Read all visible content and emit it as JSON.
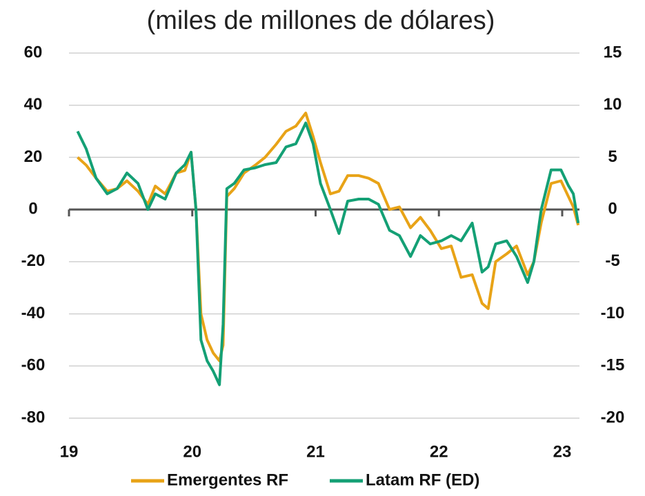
{
  "chart_data": {
    "type": "line",
    "title": "(miles de millones de dólares)",
    "x": [
      19.07,
      19.14,
      19.22,
      19.31,
      19.39,
      19.47,
      19.56,
      19.64,
      19.7,
      19.78,
      19.87,
      19.94,
      19.99,
      20.03,
      20.07,
      20.12,
      20.17,
      20.22,
      20.25,
      20.28,
      20.34,
      20.42,
      20.51,
      20.59,
      20.68,
      20.76,
      20.84,
      20.92,
      20.98,
      21.04,
      21.12,
      21.19,
      21.26,
      21.35,
      21.43,
      21.51,
      21.6,
      21.68,
      21.77,
      21.85,
      21.93,
      22.02,
      22.1,
      22.18,
      22.27,
      22.35,
      22.4,
      22.46,
      22.55,
      22.63,
      22.72,
      22.77,
      22.83,
      22.91,
      22.99,
      23.05,
      23.09,
      23.13
    ],
    "series": [
      {
        "name": "Emergentes RF",
        "color": "#E8A317",
        "values": [
          20,
          17,
          12,
          7,
          8,
          11,
          7,
          2,
          9,
          6,
          14,
          15,
          22,
          0,
          -40,
          -50,
          -55,
          -58,
          -52,
          5,
          8,
          14,
          17,
          20,
          25,
          30,
          32,
          37,
          28,
          18,
          6,
          7,
          13,
          13,
          12,
          10,
          0,
          1,
          -7,
          -3,
          -8,
          -15,
          -14,
          -26,
          -25,
          -36,
          -38,
          -20,
          -17,
          -14,
          -25,
          -20,
          -5,
          10,
          11,
          5,
          1,
          -6
        ]
      },
      {
        "name": "Latam RF (ED)",
        "color": "#14A075",
        "axis": "y2",
        "values": [
          7.5,
          5.8,
          3,
          1.5,
          2,
          3.5,
          2.5,
          0,
          1.5,
          1,
          3.5,
          4.3,
          5.5,
          0,
          -12.5,
          -14.5,
          -15.5,
          -16.8,
          -11,
          2,
          2.5,
          3.8,
          4,
          4.3,
          4.5,
          6,
          6.3,
          8.3,
          6.3,
          2.5,
          0,
          -2.3,
          0.8,
          1,
          1,
          0.5,
          -2,
          -2.5,
          -4.5,
          -2.5,
          -3.3,
          -3,
          -2.5,
          -3,
          -1.3,
          -6,
          -5.5,
          -3.3,
          -3,
          -4.5,
          -7,
          -5,
          0,
          3.8,
          3.8,
          2.3,
          1.5,
          -1.3
        ]
      }
    ],
    "xlim": [
      19,
      23.14
    ],
    "xticks": [
      19,
      20,
      21,
      22,
      23
    ],
    "ylim": [
      -80,
      60
    ],
    "yticks": [
      -80,
      -60,
      -40,
      -20,
      0,
      20,
      40,
      60
    ],
    "y2lim": [
      -20,
      15
    ],
    "y2ticks": [
      -20,
      -15,
      -10,
      -5,
      0,
      5,
      10,
      15
    ],
    "grid": true,
    "legend": "bottom"
  }
}
